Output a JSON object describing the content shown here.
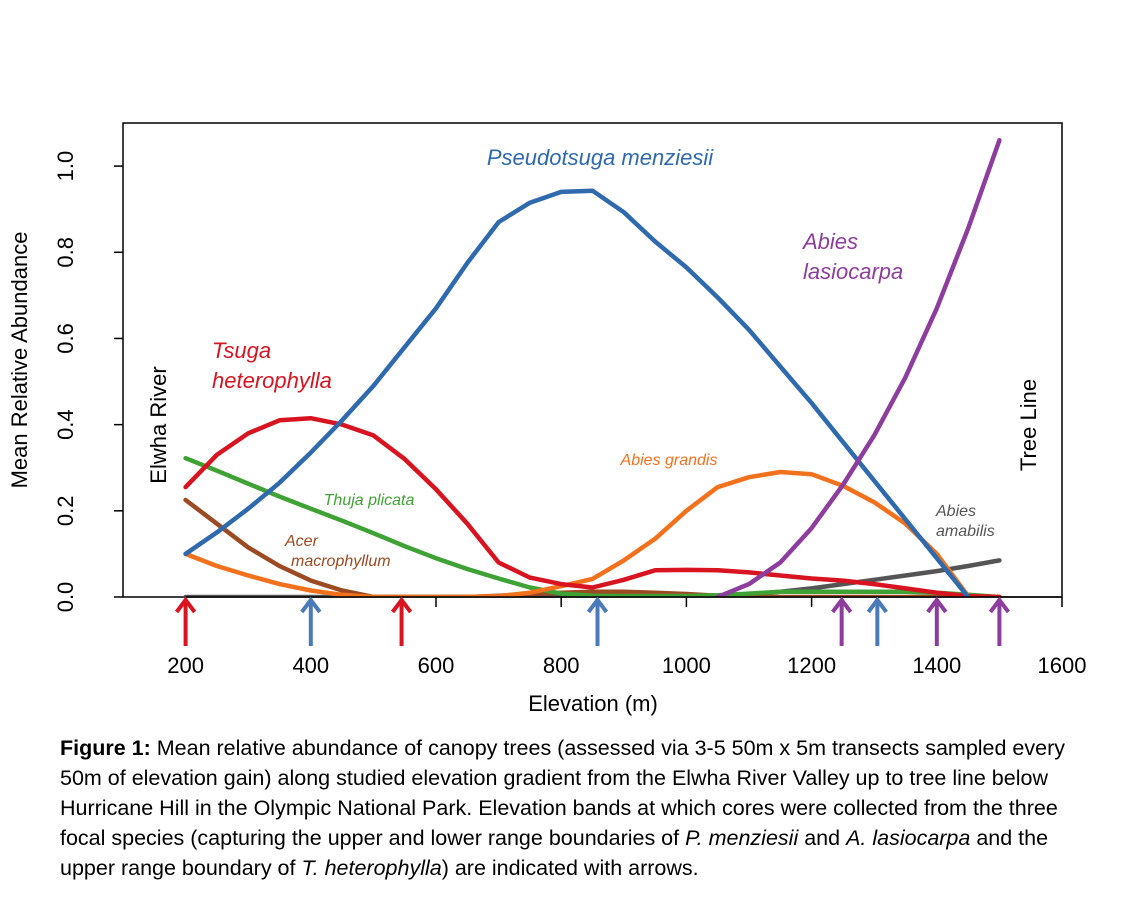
{
  "chart_data": {
    "type": "line",
    "title": "",
    "xlabel": "Elevation (m)",
    "ylabel": "Mean Relative Abundance",
    "xlim": [
      100,
      1600
    ],
    "ylim": [
      0,
      1.1
    ],
    "x_ticks": [
      200,
      400,
      600,
      800,
      1000,
      1200,
      1400,
      1600
    ],
    "y_ticks": [
      "0.0",
      "0.2",
      "0.4",
      "0.6",
      "0.8",
      "1.0"
    ],
    "grid": false,
    "series": [
      {
        "name": "Pseudotsuga menziesii",
        "color": "#2e6aad",
        "label_lines": [
          "Pseudotsuga menziesii"
        ],
        "x": [
          200,
          250,
          300,
          350,
          400,
          450,
          500,
          550,
          600,
          650,
          700,
          750,
          800,
          850,
          900,
          950,
          1000,
          1050,
          1100,
          1150,
          1200,
          1250,
          1300,
          1350,
          1400,
          1450
        ],
        "y": [
          0.1,
          0.15,
          0.205,
          0.265,
          0.335,
          0.41,
          0.49,
          0.58,
          0.67,
          0.775,
          0.87,
          0.915,
          0.94,
          0.943,
          0.893,
          0.825,
          0.765,
          0.695,
          0.62,
          0.535,
          0.45,
          0.36,
          0.27,
          0.18,
          0.09,
          0.0
        ]
      },
      {
        "name": "Tsuga heterophylla",
        "color": "#d7141f",
        "label_lines": [
          "Tsuga",
          "heterophylla"
        ],
        "x": [
          200,
          250,
          300,
          350,
          400,
          450,
          500,
          550,
          600,
          650,
          700,
          750,
          800,
          850,
          900,
          950,
          1000,
          1050,
          1100,
          1150,
          1200,
          1250,
          1300,
          1350,
          1400,
          1450,
          1500
        ],
        "y": [
          0.255,
          0.33,
          0.38,
          0.41,
          0.415,
          0.4,
          0.375,
          0.32,
          0.25,
          0.17,
          0.08,
          0.045,
          0.03,
          0.022,
          0.04,
          0.062,
          0.063,
          0.062,
          0.057,
          0.05,
          0.043,
          0.038,
          0.03,
          0.02,
          0.01,
          0.002,
          0.0
        ]
      },
      {
        "name": "Abies lasiocarpa",
        "color": "#8d3d9e",
        "label_lines": [
          "Abies",
          "lasiocarpa"
        ],
        "x": [
          1050,
          1100,
          1150,
          1200,
          1250,
          1300,
          1350,
          1400,
          1450,
          1500
        ],
        "y": [
          0.0,
          0.03,
          0.08,
          0.16,
          0.26,
          0.375,
          0.51,
          0.67,
          0.855,
          1.06
        ]
      },
      {
        "name": "Abies grandis",
        "color": "#f2711c",
        "label_lines": [
          "Abies grandis"
        ],
        "x": [
          200,
          250,
          300,
          350,
          400,
          450,
          500,
          550,
          600,
          650,
          700,
          750,
          800,
          850,
          900,
          950,
          1000,
          1050,
          1100,
          1150,
          1200,
          1250,
          1300,
          1350,
          1400,
          1450,
          1500
        ],
        "y": [
          0.1,
          0.072,
          0.05,
          0.03,
          0.015,
          0.005,
          0.0,
          0.0,
          0.0,
          0.0,
          0.002,
          0.01,
          0.025,
          0.042,
          0.085,
          0.135,
          0.2,
          0.255,
          0.278,
          0.29,
          0.285,
          0.258,
          0.22,
          0.17,
          0.1,
          0.002,
          0.0
        ]
      },
      {
        "name": "Thuja plicata",
        "color": "#3fa234",
        "label_lines": [
          "Thuja plicata"
        ],
        "x": [
          200,
          250,
          300,
          350,
          400,
          450,
          500,
          550,
          600,
          650,
          700,
          750,
          800,
          850,
          900,
          950,
          1000,
          1050,
          1100,
          1150,
          1200,
          1250,
          1300,
          1350,
          1400,
          1450,
          1500
        ],
        "y": [
          0.322,
          0.293,
          0.263,
          0.233,
          0.205,
          0.177,
          0.148,
          0.118,
          0.09,
          0.065,
          0.043,
          0.022,
          0.008,
          0.003,
          0.002,
          0.002,
          0.002,
          0.004,
          0.008,
          0.012,
          0.012,
          0.012,
          0.012,
          0.012,
          0.01,
          0.005,
          0.0
        ]
      },
      {
        "name": "Acer macrophyllum",
        "color": "#9c4a22",
        "label_lines": [
          "Acer",
          "macrophyllum"
        ],
        "x": [
          200,
          250,
          300,
          350,
          400,
          450,
          500,
          550,
          600,
          650,
          700,
          750,
          800,
          850,
          900,
          950,
          1000,
          1050,
          1100,
          1150,
          1200,
          1250,
          1300,
          1350,
          1400,
          1450,
          1500
        ],
        "y": [
          0.225,
          0.17,
          0.115,
          0.072,
          0.038,
          0.015,
          0.0,
          0.0,
          0.0,
          0.0,
          0.003,
          0.007,
          0.01,
          0.012,
          0.012,
          0.01,
          0.007,
          0.003,
          0.0,
          0.0,
          0.0,
          0.0,
          0.0,
          0.0,
          0.0,
          0.0,
          0.0
        ]
      },
      {
        "name": "Abies amabilis",
        "color": "#555555",
        "label_lines": [
          "Abies",
          "amabilis"
        ],
        "x": [
          200,
          250,
          300,
          350,
          400,
          450,
          500,
          550,
          600,
          650,
          700,
          750,
          800,
          850,
          900,
          950,
          1000,
          1050,
          1100,
          1150,
          1200,
          1250,
          1300,
          1350,
          1400,
          1450,
          1500
        ],
        "y": [
          0.0,
          0.0,
          0.0,
          0.0,
          0.0,
          0.0,
          0.0,
          0.0,
          0.0,
          0.0,
          0.0,
          0.0,
          0.0,
          0.0,
          0.0,
          0.0,
          0.0,
          0.0,
          0.005,
          0.012,
          0.02,
          0.03,
          0.04,
          0.05,
          0.06,
          0.072,
          0.085
        ]
      }
    ],
    "annotations": {
      "left_boundary": "Elwha River",
      "right_boundary": "Tree Line"
    },
    "arrows": [
      {
        "x": 200,
        "species": "Tsuga heterophylla",
        "color": "#d7141f"
      },
      {
        "x": 400,
        "species": "Pseudotsuga menziesii",
        "color": "#4a7ab8"
      },
      {
        "x": 545,
        "species": "Tsuga heterophylla",
        "color": "#d7141f"
      },
      {
        "x": 858,
        "species": "Pseudotsuga menziesii",
        "color": "#4a7ab8"
      },
      {
        "x": 1248,
        "species": "Abies lasiocarpa",
        "color": "#8d3d9e"
      },
      {
        "x": 1305,
        "species": "Pseudotsuga menziesii",
        "color": "#4a7ab8"
      },
      {
        "x": 1400,
        "species": "Abies lasiocarpa",
        "color": "#8d3d9e"
      },
      {
        "x": 1500,
        "species": "Abies lasiocarpa",
        "color": "#8d3d9e"
      }
    ]
  },
  "caption": {
    "label": "Figure 1:",
    "t1": " Mean relative abundance of canopy trees (assessed via 3-5 50m x 5m transects sampled every 50m of elevation gain) along studied elevation gradient from the Elwha River Valley up to tree line below Hurricane Hill in the Olympic National Park. Elevation bands at which cores were collected from the three focal species (capturing the upper and lower range boundaries of ",
    "sp1": "P. menziesii",
    "t2": " and ",
    "sp2": "A. lasiocarpa",
    "t3": " and the upper range boundary of ",
    "sp3": "T. heterophylla",
    "t4": ") are indicated with arrows."
  }
}
